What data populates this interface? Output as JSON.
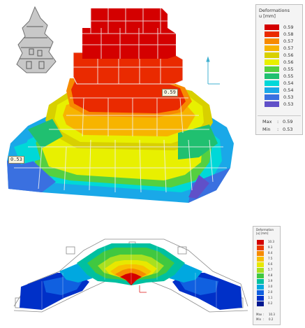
{
  "top_view": {
    "legend": {
      "title_line1": "Deformations",
      "title_line2": "u [mm]",
      "entries": [
        {
          "color": "#d40000",
          "label": "0.59"
        },
        {
          "color": "#ea2a00",
          "label": "0.58"
        },
        {
          "color": "#f78a00",
          "label": "0.57"
        },
        {
          "color": "#f7b400",
          "label": "0.57"
        },
        {
          "color": "#d8d000",
          "label": "0.56"
        },
        {
          "color": "#e8f000",
          "label": "0.56"
        },
        {
          "color": "#55d040",
          "label": "0.55"
        },
        {
          "color": "#20c070",
          "label": "0.55"
        },
        {
          "color": "#00d8d8",
          "label": "0.54"
        },
        {
          "color": "#1aa8e8",
          "label": "0.54"
        },
        {
          "color": "#3a70e0",
          "label": "0.53"
        },
        {
          "color": "#6050c8",
          "label": "0.53"
        }
      ],
      "max_label": "Max",
      "max_sep": ":",
      "max_value": "0.59",
      "min_label": "Min",
      "min_sep": ":",
      "min_value": "0.53"
    },
    "max_tag": "0.59",
    "min_tag": "0.53"
  },
  "bottom_view": {
    "legend": {
      "title_line1": "Deformation",
      "title_line2": "|u| [mm]",
      "entries": [
        {
          "color": "#d40000",
          "label": "10.3"
        },
        {
          "color": "#ea3a00",
          "label": "9.3"
        },
        {
          "color": "#f78a00",
          "label": "8.4"
        },
        {
          "color": "#f7c000",
          "label": "7.5"
        },
        {
          "color": "#e8e800",
          "label": "6.6"
        },
        {
          "color": "#a8e020",
          "label": "5.7"
        },
        {
          "color": "#40c840",
          "label": "4.8"
        },
        {
          "color": "#00c0a0",
          "label": "3.9"
        },
        {
          "color": "#00a8e0",
          "label": "3.0"
        },
        {
          "color": "#1060e0",
          "label": "2.0"
        },
        {
          "color": "#0030c8",
          "label": "1.1"
        },
        {
          "color": "#001890",
          "label": "0.2"
        }
      ],
      "max_label": "Max",
      "max_sep": ":",
      "max_value": "10.3",
      "min_label": "Min",
      "min_sep": ":",
      "min_value": "0.2"
    }
  }
}
